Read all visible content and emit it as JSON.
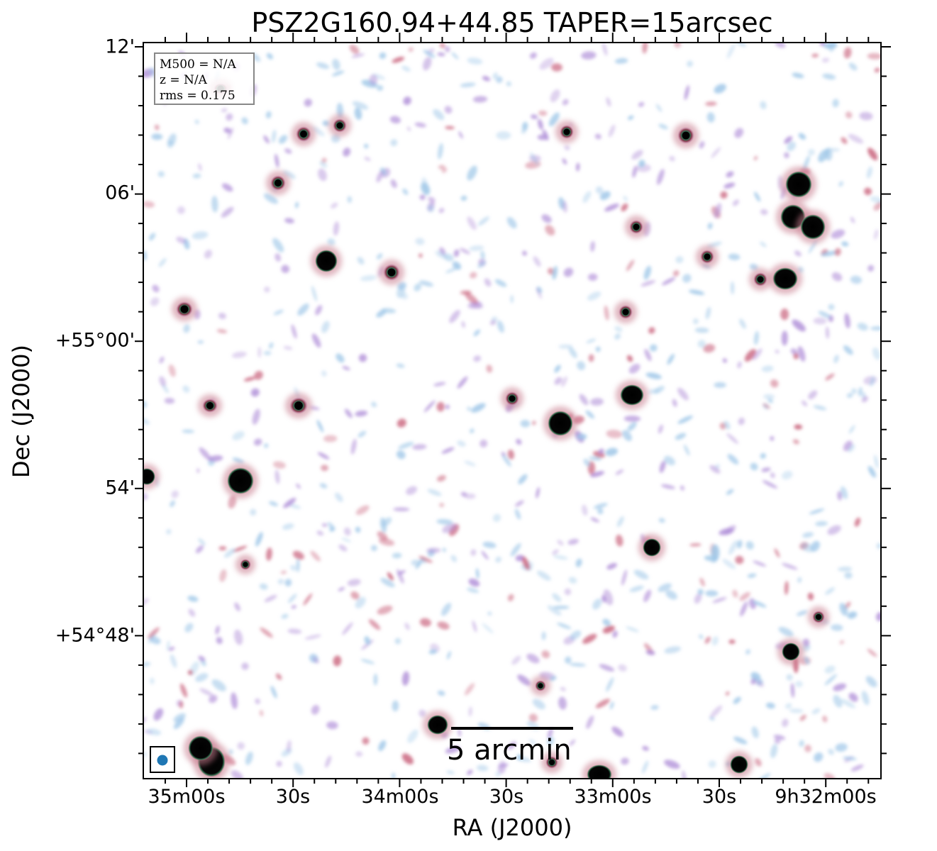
{
  "title": "PSZ2G160.94+44.85 TAPER=15arcsec",
  "axes": {
    "xlabel": "RA (J2000)",
    "ylabel": "Dec (J2000)",
    "x_ticks": [
      "35m00s",
      "30s",
      "34m00s",
      "30s",
      "33m00s",
      "30s",
      "9h32m00s"
    ],
    "y_ticks": [
      "12'",
      "06'",
      "+55°00'",
      "54'",
      "+54°48'"
    ]
  },
  "info": {
    "mass": "M500 = N/A",
    "redshift": "z = N/A",
    "rms": "rms = 0.175"
  },
  "scalebar": {
    "label": "5 arcmin"
  },
  "colors": {
    "noise_blue": "#9fc7e8",
    "noise_purple": "#b08fd8",
    "noise_red": "#c8607a",
    "source_core": "#000000",
    "beam": "#1f77b4"
  }
}
